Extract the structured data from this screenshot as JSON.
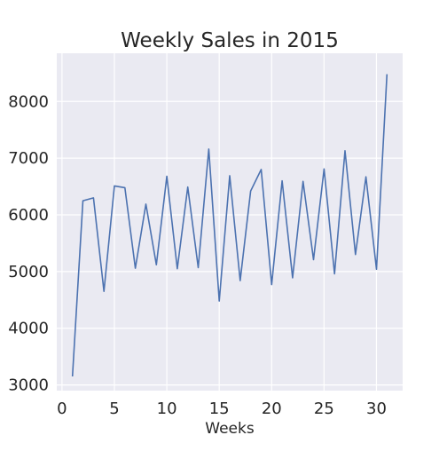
{
  "chart_data": {
    "type": "line",
    "title": "Weekly Sales in 2015",
    "xlabel": "Weeks",
    "ylabel": "",
    "xlim": [
      -0.5,
      32.5
    ],
    "ylim": [
      2900,
      8850
    ],
    "xticks": [
      0,
      5,
      10,
      15,
      20,
      25,
      30
    ],
    "yticks": [
      3000,
      4000,
      5000,
      6000,
      7000,
      8000
    ],
    "grid": true,
    "series": [
      {
        "color": "#4c72b0",
        "x": [
          1,
          2,
          3,
          4,
          5,
          6,
          7,
          8,
          9,
          10,
          11,
          12,
          13,
          14,
          15,
          16,
          17,
          18,
          19,
          20,
          21,
          22,
          23,
          24,
          25,
          26,
          27,
          28,
          29,
          30,
          31
        ],
        "values": [
          3150,
          6250,
          6300,
          4650,
          6510,
          6480,
          5060,
          6190,
          5120,
          6680,
          5050,
          6490,
          5070,
          7160,
          4480,
          6690,
          4840,
          6420,
          6800,
          4770,
          6600,
          4890,
          6590,
          5210,
          6810,
          4960,
          7130,
          5300,
          6670,
          5040,
          8480
        ]
      }
    ]
  },
  "style": {
    "plot_background": "#eaeaf2",
    "grid_color": "#ffffff",
    "line_color": "#4c72b0",
    "text_color": "#262626"
  }
}
